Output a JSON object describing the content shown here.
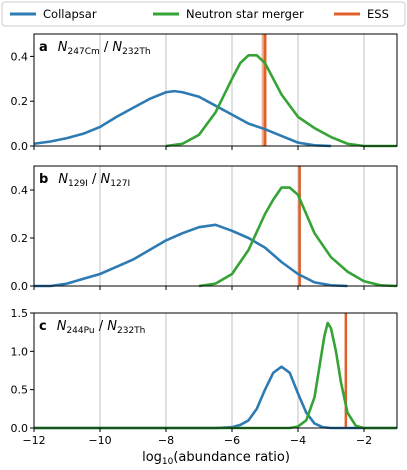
{
  "legend": [
    {
      "label": "Collapsar",
      "color": "#2e7bb4"
    },
    {
      "label": "Neutron star merger",
      "color": "#36a336"
    },
    {
      "label": "ESS",
      "color": "#e0602a"
    }
  ],
  "xlabel": "log10(abundance ratio)",
  "chart_data": [
    {
      "type": "line",
      "panel": "a",
      "label": "N247Cm / N232Th",
      "label_parts": {
        "n1": "N",
        "sub1": "247Cm",
        "sep": " / ",
        "n2": "N",
        "sub2": "232Th"
      },
      "xlim": [
        -12,
        -1
      ],
      "ylim": [
        0,
        0.5
      ],
      "yticks": [
        0.0,
        0.2,
        0.4
      ],
      "ytick_labels": [
        "0.0",
        "0.2",
        "0.4"
      ],
      "grid": "x",
      "series": [
        {
          "name": "Collapsar",
          "color": "#2e7bb4",
          "x": [
            -12,
            -11.5,
            -11,
            -10.5,
            -10,
            -9.5,
            -9,
            -8.5,
            -8,
            -7.75,
            -7.5,
            -7,
            -6.5,
            -6,
            -5.5,
            -5,
            -4.5,
            -4,
            -3.5,
            -3
          ],
          "y": [
            0.01,
            0.02,
            0.035,
            0.055,
            0.085,
            0.13,
            0.17,
            0.21,
            0.24,
            0.245,
            0.24,
            0.22,
            0.18,
            0.14,
            0.1,
            0.075,
            0.045,
            0.015,
            0.003,
            0.0
          ]
        },
        {
          "name": "Neutron star merger",
          "color": "#36a336",
          "x": [
            -8,
            -7.5,
            -7,
            -6.5,
            -6,
            -5.75,
            -5.5,
            -5.25,
            -5,
            -4.75,
            -4.5,
            -4,
            -3.5,
            -3,
            -2.5,
            -2,
            -1.5,
            -1
          ],
          "y": [
            0.0,
            0.01,
            0.05,
            0.15,
            0.3,
            0.37,
            0.405,
            0.405,
            0.37,
            0.3,
            0.23,
            0.13,
            0.08,
            0.04,
            0.01,
            0.0,
            0.0,
            0.0
          ]
        }
      ],
      "ess": {
        "x": -5.0,
        "band": [
          -5.1,
          -4.95
        ],
        "color": "#e0602a"
      }
    },
    {
      "type": "line",
      "panel": "b",
      "label": "N129I / N127I",
      "label_parts": {
        "n1": "N",
        "sub1": "129I",
        "sep": " / ",
        "n2": "N",
        "sub2": "127I"
      },
      "xlim": [
        -12,
        -1
      ],
      "ylim": [
        0,
        0.5
      ],
      "yticks": [
        0.0,
        0.2,
        0.4
      ],
      "ytick_labels": [
        "0.0",
        "0.2",
        "0.4"
      ],
      "grid": "x",
      "series": [
        {
          "name": "Collapsar",
          "color": "#2e7bb4",
          "x": [
            -12,
            -11.5,
            -11,
            -10.5,
            -10,
            -9.5,
            -9,
            -8.5,
            -8,
            -7.5,
            -7,
            -6.5,
            -6,
            -5.5,
            -5,
            -4.5,
            -4,
            -3.5,
            -3,
            -2.5
          ],
          "y": [
            0.0,
            0.0,
            0.01,
            0.03,
            0.05,
            0.08,
            0.11,
            0.15,
            0.19,
            0.22,
            0.245,
            0.255,
            0.23,
            0.2,
            0.16,
            0.1,
            0.05,
            0.015,
            0.003,
            0.0
          ]
        },
        {
          "name": "Neutron star merger",
          "color": "#36a336",
          "x": [
            -7,
            -6.5,
            -6,
            -5.5,
            -5,
            -4.75,
            -4.5,
            -4.25,
            -4,
            -3.75,
            -3.5,
            -3,
            -2.5,
            -2,
            -1.5,
            -1
          ],
          "y": [
            0.0,
            0.01,
            0.05,
            0.15,
            0.3,
            0.36,
            0.41,
            0.41,
            0.38,
            0.3,
            0.22,
            0.12,
            0.06,
            0.02,
            0.003,
            0.0
          ]
        }
      ],
      "ess": {
        "x": -3.95,
        "band": [
          -3.98,
          -3.92
        ],
        "color": "#e0602a"
      }
    },
    {
      "type": "line",
      "panel": "c",
      "label": "N244Pu / N232Th",
      "label_parts": {
        "n1": "N",
        "sub1": "244Pu",
        "sep": " / ",
        "n2": "N",
        "sub2": "232Th"
      },
      "xlim": [
        -12,
        -1
      ],
      "ylim": [
        0,
        1.5
      ],
      "yticks": [
        0.0,
        0.5,
        1.0,
        1.5
      ],
      "ytick_labels": [
        "0.0",
        "0.5",
        "1.0",
        "1.5"
      ],
      "grid": "x",
      "series": [
        {
          "name": "Collapsar",
          "color": "#2e7bb4",
          "x": [
            -12,
            -6.5,
            -6,
            -5.75,
            -5.5,
            -5.25,
            -5,
            -4.75,
            -4.5,
            -4.25,
            -4,
            -3.75,
            -3.5,
            -3.25,
            -3,
            -1
          ],
          "y": [
            0.0,
            0.0,
            0.01,
            0.04,
            0.1,
            0.25,
            0.5,
            0.72,
            0.8,
            0.72,
            0.45,
            0.2,
            0.06,
            0.01,
            0.0,
            0.0
          ]
        },
        {
          "name": "Neutron star merger",
          "color": "#36a336",
          "x": [
            -12,
            -4.25,
            -4,
            -3.75,
            -3.5,
            -3.35,
            -3.2,
            -3.1,
            -3.0,
            -2.85,
            -2.7,
            -2.5,
            -2.25,
            -2,
            -1
          ],
          "y": [
            0.0,
            0.0,
            0.02,
            0.1,
            0.4,
            0.8,
            1.2,
            1.37,
            1.3,
            1.0,
            0.6,
            0.2,
            0.03,
            0.0,
            0.0
          ]
        }
      ],
      "ess": {
        "x": -2.55,
        "band": [
          -2.58,
          -2.52
        ],
        "color": "#e0602a"
      }
    }
  ],
  "xticks": [
    -12,
    -10,
    -8,
    -6,
    -4,
    -2
  ],
  "xtick_labels": [
    "−12",
    "−10",
    "−8",
    "−6",
    "−4",
    "−2"
  ]
}
